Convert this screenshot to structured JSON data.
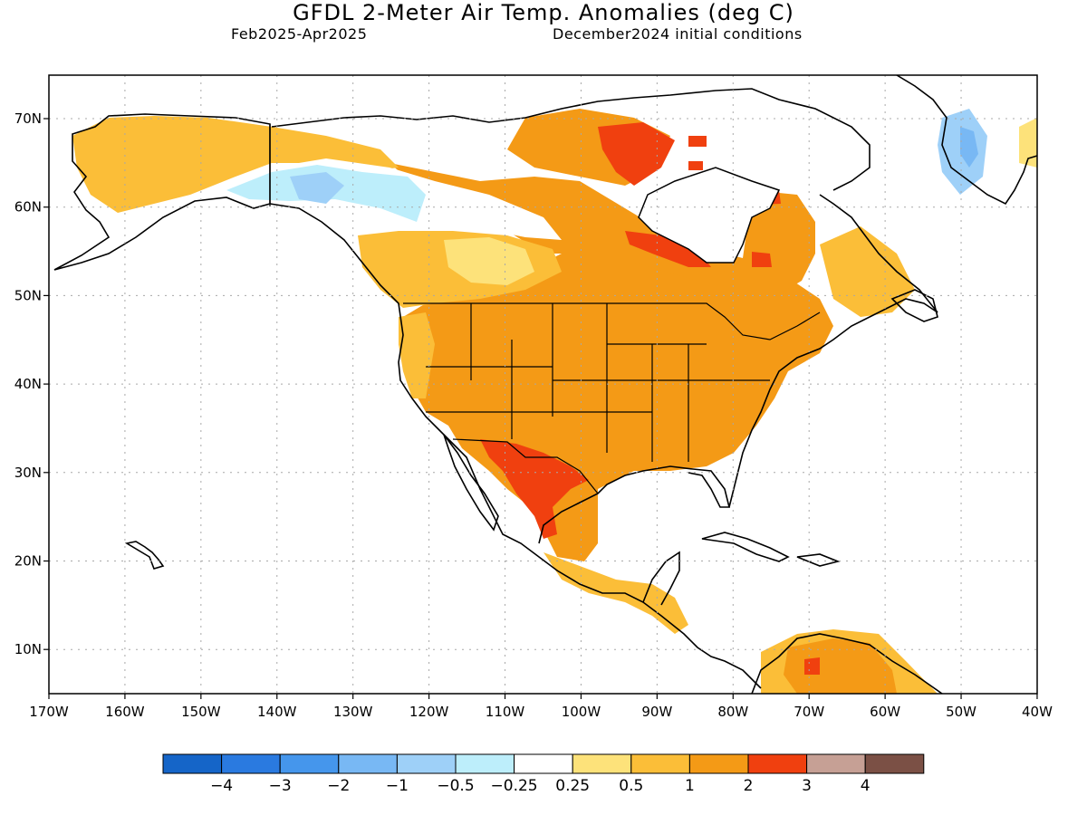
{
  "title": "GFDL 2-Meter Air Temp. Anomalies (deg C)",
  "period": "Feb2025-Apr2025",
  "init": "December2024 initial conditions",
  "lat_ticks": [
    "70N",
    "60N",
    "50N",
    "40N",
    "30N",
    "20N",
    "10N"
  ],
  "lon_ticks": [
    "170W",
    "160W",
    "150W",
    "140W",
    "130W",
    "120W",
    "110W",
    "100W",
    "90W",
    "80W",
    "70W",
    "60W",
    "50W",
    "40W"
  ],
  "colorbar": {
    "colors": [
      "#1565c8",
      "#2a7ae0",
      "#4596ec",
      "#78b8f4",
      "#9ed0f8",
      "#bdeefb",
      "#ffffff",
      "#fde27a",
      "#fbbe38",
      "#f49a16",
      "#f0400f",
      "#c6a095",
      "#7b5045"
    ],
    "labels": [
      "-4",
      "-3",
      "-2",
      "-1",
      "-0.5",
      "-0.25",
      "0.25",
      "0.5",
      "1",
      "2",
      "3",
      "4"
    ]
  },
  "map": {
    "colors": {
      "land_outline": "#000000",
      "grid": "#b0b0b0",
      "anom_1_2": "#f49a16",
      "anom_0_5_1": "#fbbe38",
      "anom_0_25_0_5": "#fde27a",
      "anom_2_3": "#f0400f",
      "anom_neg_0_5": "#9ed0f8",
      "anom_neg_0_25": "#bdeefb",
      "anom_neg_1": "#78b8f4"
    }
  }
}
